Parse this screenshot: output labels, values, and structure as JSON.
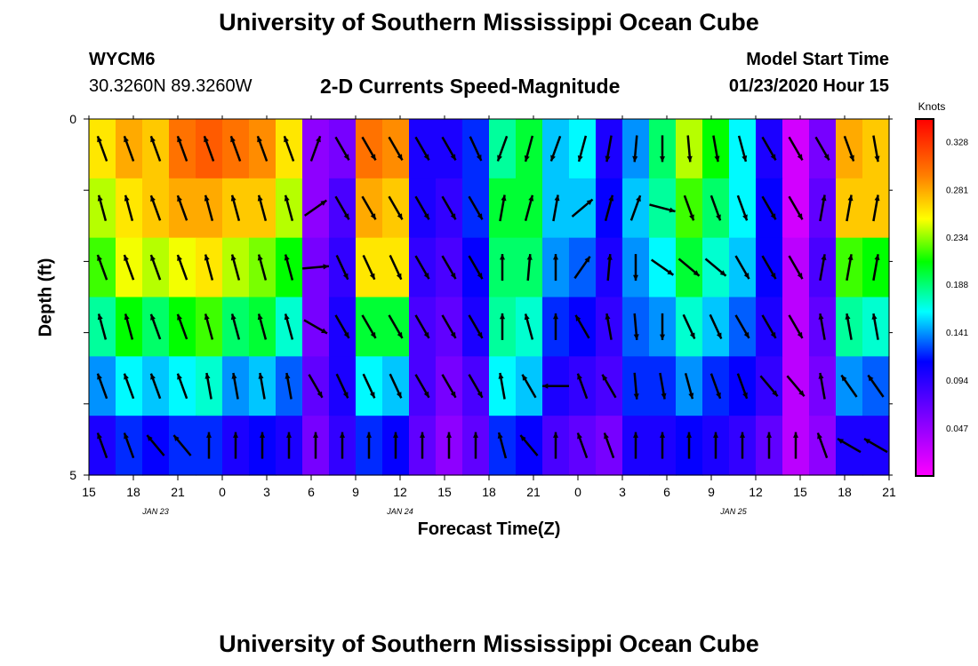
{
  "page": {
    "title_top": "University of Southern Mississippi Ocean Cube",
    "title_bottom": "University of Southern Mississippi Ocean Cube",
    "station": "WYCM6",
    "coords": "30.3260N 89.3260W",
    "subtitle": "2-D Currents Speed-Magnitude",
    "model_start_label": "Model Start Time",
    "model_start_value": "01/23/2020 Hour 15"
  },
  "chart_data": {
    "type": "heatmap",
    "xlabel": "Forecast Time(Z)",
    "ylabel": "Depth (ft)",
    "x_tick_labels": [
      "15",
      "18",
      "21",
      "0",
      "3",
      "6",
      "9",
      "12",
      "15",
      "18",
      "21",
      "0",
      "3",
      "6",
      "9",
      "12",
      "15",
      "18",
      "21"
    ],
    "date_labels": [
      {
        "text": "JAN  23",
        "tick_index": 1.5
      },
      {
        "text": "JAN  24",
        "tick_index": 7
      },
      {
        "text": "JAN  25",
        "tick_index": 14.5
      }
    ],
    "y_tick_labels": [
      "0",
      "5"
    ],
    "ylim": [
      0,
      5
    ],
    "colorbar": {
      "unit": "Knots",
      "labels": [
        "0.328",
        "0.281",
        "0.234",
        "0.188",
        "0.141",
        "0.094",
        "0.047"
      ],
      "min": 0,
      "max": 0.35
    },
    "speed_grid_knots": [
      [
        0.26,
        0.28,
        0.27,
        0.3,
        0.31,
        0.3,
        0.29,
        0.26,
        0.05,
        0.06,
        0.3,
        0.29,
        0.1,
        0.1,
        0.12,
        0.18,
        0.2,
        0.15,
        0.16,
        0.1,
        0.14,
        0.19,
        0.24,
        0.21,
        0.16,
        0.1,
        0.02,
        0.06,
        0.28,
        0.27
      ],
      [
        0.24,
        0.26,
        0.27,
        0.28,
        0.28,
        0.27,
        0.27,
        0.24,
        0.05,
        0.08,
        0.28,
        0.27,
        0.1,
        0.09,
        0.12,
        0.2,
        0.2,
        0.15,
        0.15,
        0.11,
        0.15,
        0.18,
        0.22,
        0.19,
        0.16,
        0.11,
        0.02,
        0.07,
        0.27,
        0.27
      ],
      [
        0.22,
        0.25,
        0.24,
        0.25,
        0.26,
        0.24,
        0.23,
        0.21,
        0.06,
        0.09,
        0.26,
        0.26,
        0.09,
        0.08,
        0.11,
        0.19,
        0.19,
        0.14,
        0.13,
        0.1,
        0.14,
        0.16,
        0.2,
        0.17,
        0.15,
        0.11,
        0.03,
        0.08,
        0.22,
        0.21
      ],
      [
        0.18,
        0.21,
        0.19,
        0.21,
        0.22,
        0.19,
        0.2,
        0.17,
        0.06,
        0.1,
        0.2,
        0.2,
        0.08,
        0.07,
        0.1,
        0.18,
        0.17,
        0.12,
        0.11,
        0.09,
        0.13,
        0.14,
        0.17,
        0.15,
        0.13,
        0.1,
        0.03,
        0.07,
        0.18,
        0.17
      ],
      [
        0.14,
        0.16,
        0.15,
        0.16,
        0.17,
        0.14,
        0.15,
        0.13,
        0.07,
        0.1,
        0.16,
        0.15,
        0.08,
        0.06,
        0.08,
        0.16,
        0.15,
        0.1,
        0.09,
        0.08,
        0.12,
        0.12,
        0.14,
        0.12,
        0.11,
        0.09,
        0.03,
        0.06,
        0.14,
        0.13
      ],
      [
        0.1,
        0.12,
        0.11,
        0.12,
        0.12,
        0.1,
        0.11,
        0.1,
        0.06,
        0.09,
        0.12,
        0.11,
        0.07,
        0.05,
        0.07,
        0.12,
        0.11,
        0.08,
        0.07,
        0.06,
        0.1,
        0.1,
        0.11,
        0.1,
        0.09,
        0.07,
        0.03,
        0.05,
        0.1,
        0.1
      ]
    ],
    "direction_grid_deg": [
      [
        340,
        340,
        340,
        340,
        340,
        340,
        340,
        340,
        20,
        150,
        150,
        150,
        150,
        150,
        155,
        200,
        195,
        200,
        195,
        190,
        185,
        180,
        175,
        170,
        165,
        150,
        150,
        150,
        160,
        170
      ],
      [
        345,
        345,
        340,
        340,
        345,
        345,
        345,
        345,
        55,
        150,
        150,
        150,
        150,
        150,
        150,
        10,
        15,
        10,
        50,
        15,
        20,
        105,
        160,
        160,
        160,
        150,
        150,
        10,
        10,
        10
      ],
      [
        340,
        340,
        340,
        340,
        345,
        345,
        345,
        345,
        85,
        155,
        155,
        155,
        150,
        150,
        150,
        0,
        5,
        0,
        35,
        5,
        180,
        125,
        130,
        130,
        150,
        150,
        150,
        10,
        10,
        10
      ],
      [
        345,
        345,
        340,
        340,
        345,
        345,
        345,
        345,
        120,
        150,
        150,
        150,
        150,
        150,
        150,
        0,
        345,
        0,
        330,
        350,
        175,
        180,
        155,
        155,
        150,
        150,
        150,
        350,
        350,
        350
      ],
      [
        340,
        340,
        340,
        340,
        350,
        350,
        350,
        350,
        150,
        155,
        155,
        155,
        150,
        150,
        150,
        350,
        330,
        270,
        340,
        330,
        175,
        170,
        165,
        160,
        160,
        140,
        140,
        350,
        325,
        325
      ],
      [
        340,
        340,
        320,
        320,
        0,
        0,
        0,
        0,
        0,
        0,
        0,
        0,
        0,
        0,
        0,
        345,
        320,
        0,
        340,
        340,
        0,
        0,
        0,
        0,
        0,
        0,
        0,
        340,
        300,
        300
      ]
    ]
  }
}
